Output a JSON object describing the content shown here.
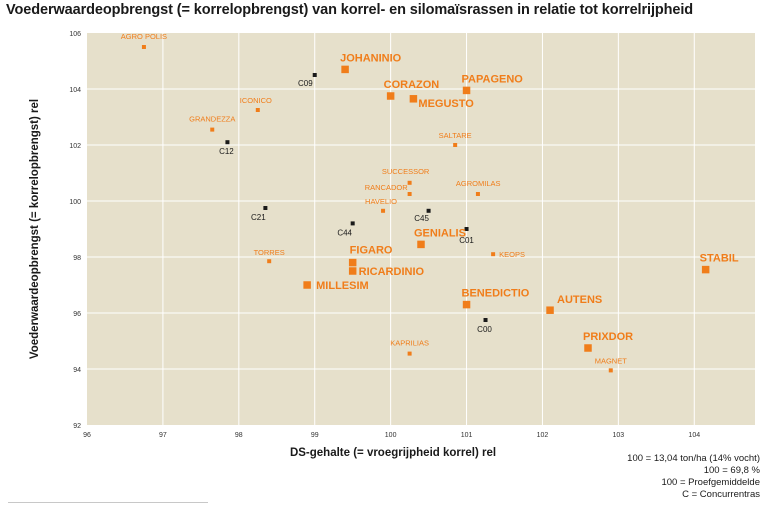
{
  "title": "Voederwaardeopbrengst (= korrelopbrengst) van korrel- en silomaïsrassen in relatie tot korrelrijpheid",
  "notes": [
    "100 = 13,04 ton/ha (14% vocht)",
    "100 = 69,8 %",
    "100 = Proefgemiddelde",
    "C = Concurrentras"
  ],
  "colors": {
    "background": "#e6e0cb",
    "variety": "#f07d1a",
    "competitor": "#1a1a1a",
    "grid": "#ffffff"
  },
  "chart_data": {
    "type": "scatter",
    "title": "Voederwaardeopbrengst (= korrelopbrengst) van korrel- en silomaïsrassen in relatie tot korrelrijpheid",
    "xlabel": "DS-gehalte (= vroegrijpheid korrel) rel",
    "ylabel": "Voederwaardeopbrengst (= korrelopbrengst) rel",
    "xlim": [
      96,
      104.8
    ],
    "ylim": [
      92,
      106
    ],
    "xticks": [
      "96",
      "97",
      "98",
      "99",
      "100",
      "101",
      "102",
      "103",
      "104"
    ],
    "yticks": [
      "92",
      "94",
      "96",
      "98",
      "100",
      "102",
      "104",
      "106"
    ],
    "grid": true,
    "points": [
      {
        "label": "AGRO POLIS",
        "x": 96.75,
        "y": 105.5,
        "group": "minor"
      },
      {
        "label": "C09",
        "x": 99.0,
        "y": 104.5,
        "group": "competitor"
      },
      {
        "label": "JOHANINIO",
        "x": 99.4,
        "y": 104.7,
        "group": "major"
      },
      {
        "label": "CORAZON",
        "x": 100.0,
        "y": 103.75,
        "group": "major"
      },
      {
        "label": "MEGUSTO",
        "x": 100.3,
        "y": 103.65,
        "group": "major"
      },
      {
        "label": "PAPAGENO",
        "x": 101.0,
        "y": 103.95,
        "group": "major"
      },
      {
        "label": "ICONICO",
        "x": 98.25,
        "y": 103.25,
        "group": "minor"
      },
      {
        "label": "GRANDEZZA",
        "x": 97.65,
        "y": 102.55,
        "group": "minor"
      },
      {
        "label": "C12",
        "x": 97.85,
        "y": 102.1,
        "group": "competitor"
      },
      {
        "label": "SALTARE",
        "x": 100.85,
        "y": 102.0,
        "group": "minor"
      },
      {
        "label": "SUCCESSOR",
        "x": 100.25,
        "y": 100.65,
        "group": "minor"
      },
      {
        "label": "AGROMILAS",
        "x": 101.15,
        "y": 100.25,
        "group": "minor"
      },
      {
        "label": "RANCADOR",
        "x": 100.25,
        "y": 100.25,
        "group": "minor"
      },
      {
        "label": "HAVELIO",
        "x": 99.9,
        "y": 99.65,
        "group": "minor"
      },
      {
        "label": "C21",
        "x": 98.35,
        "y": 99.75,
        "group": "competitor"
      },
      {
        "label": "C45",
        "x": 100.5,
        "y": 99.65,
        "group": "competitor"
      },
      {
        "label": "C44",
        "x": 99.5,
        "y": 99.2,
        "group": "competitor"
      },
      {
        "label": "C01",
        "x": 101.0,
        "y": 99.0,
        "group": "competitor"
      },
      {
        "label": "GENIALIS",
        "x": 100.4,
        "y": 98.45,
        "group": "major"
      },
      {
        "label": "TORRES",
        "x": 98.4,
        "y": 97.85,
        "group": "minor"
      },
      {
        "label": "KEOPS",
        "x": 101.35,
        "y": 98.1,
        "group": "minor"
      },
      {
        "label": "FIGARO",
        "x": 99.5,
        "y": 97.8,
        "group": "major"
      },
      {
        "label": "RICARDINIO",
        "x": 99.5,
        "y": 97.5,
        "group": "major"
      },
      {
        "label": "MILLESIM",
        "x": 98.9,
        "y": 97.0,
        "group": "major"
      },
      {
        "label": "STABIL",
        "x": 104.15,
        "y": 97.55,
        "group": "major"
      },
      {
        "label": "BENEDICTIO",
        "x": 101.0,
        "y": 96.3,
        "group": "major"
      },
      {
        "label": "AUTENS",
        "x": 102.1,
        "y": 96.1,
        "group": "major"
      },
      {
        "label": "C00",
        "x": 101.25,
        "y": 95.75,
        "group": "competitor"
      },
      {
        "label": "PRIXDOR",
        "x": 102.6,
        "y": 94.75,
        "group": "major"
      },
      {
        "label": "KAPRILIAS",
        "x": 100.25,
        "y": 94.55,
        "group": "minor"
      },
      {
        "label": "MAGNET",
        "x": 102.9,
        "y": 93.95,
        "group": "minor"
      }
    ]
  }
}
